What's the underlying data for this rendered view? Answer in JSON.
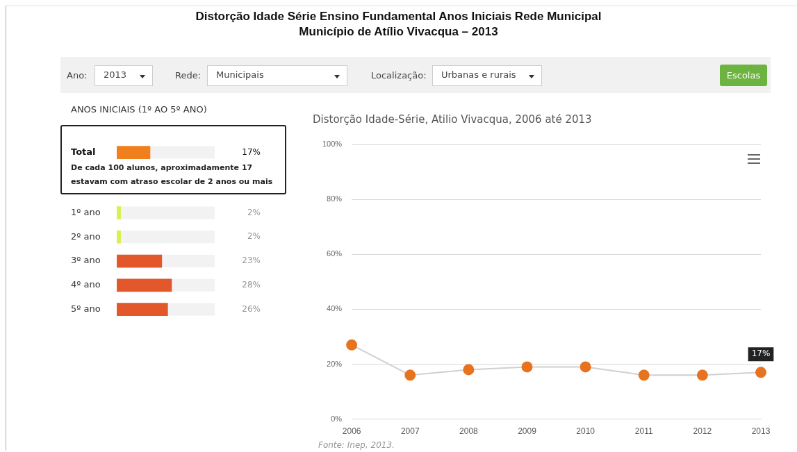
{
  "chart_data": [
    {
      "type": "other",
      "title": "Distorção Idade Série Ensino Fundamental Anos Iniciais Rede Municipal",
      "subtitle": "Município de Atílio Vivacqua – 2013",
      "annotations": [
        "Ano:",
        "2013",
        "Rede:",
        "Municipais",
        "Localização:",
        "Urbanas e rurais",
        "Escolas"
      ]
    },
    {
      "type": "bar",
      "orientation": "horizontal",
      "title": "ANOS INICIAIS (1º AO 5º ANO)",
      "categories": [
        "Total",
        "1º ano",
        "2º ano",
        "3º ano",
        "4º ano",
        "5º ano"
      ],
      "values": [
        17,
        2,
        2,
        23,
        28,
        26
      ],
      "colors": [
        "#f07f1e",
        "#d9f04e",
        "#d9f04e",
        "#e2582a",
        "#e2582a",
        "#e2582a"
      ],
      "value_labels": [
        "17%",
        "2%",
        "2%",
        "23%",
        "28%",
        "26%"
      ],
      "xlim": [
        0,
        50
      ],
      "annotations": [
        "De cada 100 alunos, aproximadamente 17 estavam com atraso escolar de 2 anos ou mais"
      ]
    },
    {
      "type": "line",
      "title": "Distorção Idade-Série, Atilio Vivacqua, 2006 até 2013",
      "categories": [
        "2006",
        "2007",
        "2008",
        "2009",
        "2010",
        "2011",
        "2012",
        "2013"
      ],
      "values": [
        27,
        16,
        18,
        19,
        19,
        16,
        16,
        17
      ],
      "color": "#e8731f",
      "value_labels": [
        null,
        null,
        null,
        null,
        null,
        null,
        null,
        "17%"
      ],
      "ylim": [
        0,
        100
      ],
      "yticks": [
        {
          "value": 0,
          "label": "0%"
        },
        {
          "value": 20,
          "label": "20%"
        },
        {
          "value": 40,
          "label": "40%"
        },
        {
          "value": 60,
          "label": "60%"
        },
        {
          "value": 80,
          "label": "80%"
        },
        {
          "value": 100,
          "label": "100%"
        }
      ],
      "grid": "y",
      "marker": "circle",
      "legend": false,
      "annotations": [
        "Fonte: Inep, 2013."
      ]
    }
  ]
}
